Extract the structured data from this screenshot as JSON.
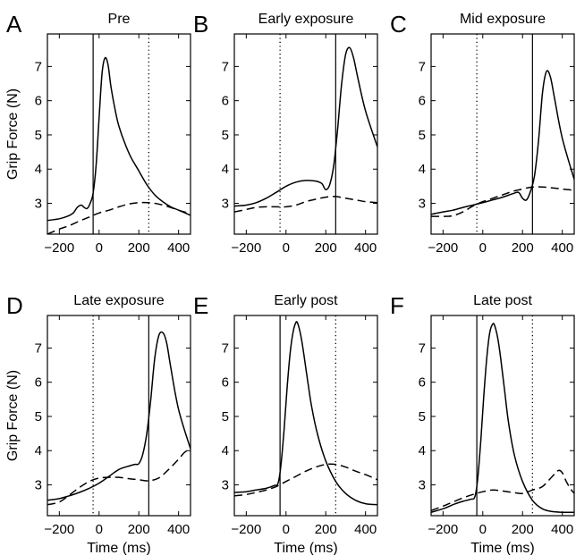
{
  "chart_data": [
    {
      "type": "line",
      "letter": "A",
      "title": "Pre",
      "xlabel": "",
      "ylabel": "Grip Force (N)",
      "xlim": [
        -260,
        460
      ],
      "ylim": [
        2.1,
        7.95
      ],
      "xticks": [
        "-200",
        "0",
        "200",
        "400"
      ],
      "yticks": [
        "3",
        "4",
        "5",
        "6",
        "7"
      ],
      "vlines": [
        {
          "x": -30,
          "style": "solid"
        },
        {
          "x": 250,
          "style": "dotted"
        }
      ],
      "series": [
        {
          "style": "solid",
          "x": [
            -260,
            -200,
            -160,
            -130,
            -110,
            -90,
            -75,
            -60,
            -45,
            -30,
            -15,
            0,
            15,
            30,
            45,
            60,
            80,
            100,
            130,
            160,
            200,
            240,
            280,
            320,
            360,
            400,
            460
          ],
          "y": [
            2.5,
            2.55,
            2.62,
            2.72,
            2.88,
            2.95,
            2.88,
            2.85,
            3.0,
            3.3,
            4.1,
            5.5,
            6.8,
            7.25,
            7.05,
            6.4,
            5.75,
            5.25,
            4.75,
            4.35,
            3.95,
            3.55,
            3.25,
            3.05,
            2.9,
            2.8,
            2.65
          ]
        },
        {
          "style": "dashed",
          "x": [
            -260,
            -200,
            -150,
            -100,
            -50,
            0,
            50,
            100,
            150,
            200,
            250,
            300,
            350,
            400,
            460
          ],
          "y": [
            2.1,
            2.25,
            2.35,
            2.48,
            2.6,
            2.72,
            2.8,
            2.9,
            2.98,
            3.02,
            3.02,
            2.98,
            2.9,
            2.8,
            2.7
          ]
        }
      ]
    },
    {
      "type": "line",
      "letter": "B",
      "title": "Early exposure",
      "xlabel": "",
      "ylabel": "",
      "xlim": [
        -260,
        460
      ],
      "ylim": [
        2.1,
        7.95
      ],
      "xticks": [
        "-200",
        "0",
        "200",
        "400"
      ],
      "yticks": [
        "3",
        "4",
        "5",
        "6",
        "7"
      ],
      "vlines": [
        {
          "x": -30,
          "style": "dotted"
        },
        {
          "x": 250,
          "style": "solid"
        }
      ],
      "series": [
        {
          "style": "solid",
          "x": [
            -260,
            -200,
            -150,
            -100,
            -50,
            0,
            50,
            100,
            150,
            180,
            200,
            220,
            240,
            260,
            280,
            300,
            320,
            340,
            360,
            400,
            460
          ],
          "y": [
            2.92,
            2.95,
            3.02,
            3.15,
            3.32,
            3.5,
            3.62,
            3.67,
            3.65,
            3.58,
            3.4,
            3.55,
            4.1,
            5.2,
            6.5,
            7.35,
            7.55,
            7.25,
            6.7,
            5.7,
            4.65
          ]
        },
        {
          "style": "dashed",
          "x": [
            -260,
            -200,
            -150,
            -100,
            -50,
            0,
            50,
            100,
            150,
            200,
            250,
            300,
            350,
            400,
            460
          ],
          "y": [
            2.75,
            2.82,
            2.88,
            2.9,
            2.9,
            2.9,
            2.95,
            3.05,
            3.12,
            3.18,
            3.2,
            3.15,
            3.1,
            3.05,
            3.02
          ]
        }
      ]
    },
    {
      "type": "line",
      "letter": "C",
      "title": "Mid exposure",
      "xlabel": "",
      "ylabel": "",
      "xlim": [
        -260,
        460
      ],
      "ylim": [
        2.1,
        7.95
      ],
      "xticks": [
        "-200",
        "0",
        "200",
        "400"
      ],
      "yticks": [
        "3",
        "4",
        "5",
        "6",
        "7"
      ],
      "vlines": [
        {
          "x": -30,
          "style": "dotted"
        },
        {
          "x": 250,
          "style": "solid"
        }
      ],
      "series": [
        {
          "style": "solid",
          "x": [
            -260,
            -200,
            -150,
            -100,
            -50,
            0,
            50,
            100,
            150,
            180,
            200,
            220,
            240,
            260,
            280,
            300,
            320,
            340,
            360,
            400,
            460
          ],
          "y": [
            2.68,
            2.75,
            2.8,
            2.88,
            2.95,
            3.02,
            3.1,
            3.18,
            3.28,
            3.32,
            3.15,
            3.1,
            3.35,
            3.8,
            4.8,
            6.2,
            6.85,
            6.7,
            6.1,
            4.9,
            3.7
          ]
        },
        {
          "style": "dashed",
          "x": [
            -260,
            -200,
            -150,
            -100,
            -50,
            0,
            50,
            100,
            150,
            200,
            250,
            300,
            350,
            400,
            460
          ],
          "y": [
            2.62,
            2.62,
            2.64,
            2.75,
            2.92,
            3.05,
            3.15,
            3.25,
            3.35,
            3.42,
            3.48,
            3.48,
            3.45,
            3.42,
            3.38
          ]
        }
      ]
    },
    {
      "type": "line",
      "letter": "D",
      "title": "Late exposure",
      "xlabel": "Time (ms)",
      "ylabel": "Grip Force (N)",
      "xlim": [
        -260,
        460
      ],
      "ylim": [
        2.1,
        7.95
      ],
      "xticks": [
        "-200",
        "0",
        "200",
        "400"
      ],
      "yticks": [
        "3",
        "4",
        "5",
        "6",
        "7"
      ],
      "vlines": [
        {
          "x": -30,
          "style": "dotted"
        },
        {
          "x": 250,
          "style": "solid"
        }
      ],
      "series": [
        {
          "style": "solid",
          "x": [
            -260,
            -200,
            -150,
            -100,
            -50,
            0,
            50,
            100,
            150,
            180,
            200,
            220,
            240,
            260,
            280,
            300,
            320,
            340,
            360,
            400,
            460
          ],
          "y": [
            2.55,
            2.6,
            2.68,
            2.78,
            2.9,
            3.05,
            3.25,
            3.45,
            3.55,
            3.6,
            3.62,
            3.9,
            4.5,
            5.5,
            6.7,
            7.35,
            7.45,
            7.15,
            6.45,
            5.2,
            4.05
          ]
        },
        {
          "style": "dashed",
          "x": [
            -260,
            -200,
            -150,
            -100,
            -50,
            0,
            50,
            100,
            150,
            200,
            250,
            300,
            350,
            400,
            430,
            460
          ],
          "y": [
            2.42,
            2.5,
            2.7,
            2.92,
            3.1,
            3.2,
            3.22,
            3.22,
            3.18,
            3.15,
            3.12,
            3.2,
            3.45,
            3.75,
            3.95,
            4.05
          ]
        }
      ]
    },
    {
      "type": "line",
      "letter": "E",
      "title": "Early  post",
      "xlabel": "Time (ms)",
      "ylabel": "",
      "xlim": [
        -260,
        460
      ],
      "ylim": [
        2.1,
        7.95
      ],
      "xticks": [
        "-200",
        "0",
        "200",
        "400"
      ],
      "yticks": [
        "3",
        "4",
        "5",
        "6",
        "7"
      ],
      "vlines": [
        {
          "x": -30,
          "style": "solid"
        },
        {
          "x": 250,
          "style": "dotted"
        }
      ],
      "series": [
        {
          "style": "solid",
          "x": [
            -260,
            -200,
            -150,
            -100,
            -60,
            -40,
            -25,
            -10,
            5,
            20,
            35,
            50,
            60,
            75,
            90,
            110,
            130,
            160,
            200,
            250,
            300,
            350,
            400,
            460
          ],
          "y": [
            2.78,
            2.8,
            2.85,
            2.9,
            2.98,
            3.05,
            3.6,
            4.6,
            5.8,
            6.8,
            7.45,
            7.75,
            7.7,
            7.35,
            6.8,
            6.0,
            5.25,
            4.45,
            3.7,
            3.1,
            2.75,
            2.55,
            2.45,
            2.42
          ]
        },
        {
          "style": "dashed",
          "x": [
            -260,
            -200,
            -150,
            -100,
            -50,
            0,
            50,
            100,
            150,
            200,
            250,
            300,
            350,
            400,
            460
          ],
          "y": [
            2.68,
            2.72,
            2.78,
            2.85,
            2.95,
            3.1,
            3.25,
            3.4,
            3.52,
            3.6,
            3.6,
            3.52,
            3.4,
            3.3,
            3.15
          ]
        }
      ]
    },
    {
      "type": "line",
      "letter": "F",
      "title": "Late post",
      "xlabel": "Time (ms)",
      "ylabel": "",
      "xlim": [
        -260,
        460
      ],
      "ylim": [
        2.1,
        7.95
      ],
      "xticks": [
        "-200",
        "0",
        "200",
        "400"
      ],
      "yticks": [
        "3",
        "4",
        "5",
        "6",
        "7"
      ],
      "vlines": [
        {
          "x": -30,
          "style": "solid"
        },
        {
          "x": 250,
          "style": "dotted"
        }
      ],
      "series": [
        {
          "style": "solid",
          "x": [
            -260,
            -200,
            -150,
            -100,
            -60,
            -40,
            -25,
            -10,
            5,
            20,
            35,
            50,
            60,
            75,
            90,
            110,
            130,
            160,
            200,
            250,
            300,
            350,
            400,
            460
          ],
          "y": [
            2.2,
            2.3,
            2.42,
            2.52,
            2.58,
            2.65,
            3.2,
            4.3,
            5.6,
            6.7,
            7.45,
            7.7,
            7.65,
            7.3,
            6.7,
            5.75,
            4.8,
            3.85,
            3.1,
            2.55,
            2.3,
            2.22,
            2.2,
            2.2
          ]
        },
        {
          "style": "dashed",
          "x": [
            -260,
            -200,
            -150,
            -100,
            -50,
            0,
            50,
            100,
            150,
            200,
            250,
            300,
            350,
            380,
            400,
            420,
            440,
            460
          ],
          "y": [
            2.25,
            2.38,
            2.5,
            2.62,
            2.72,
            2.8,
            2.85,
            2.82,
            2.78,
            2.75,
            2.85,
            2.95,
            3.25,
            3.42,
            3.35,
            3.1,
            2.9,
            2.75
          ]
        }
      ]
    }
  ]
}
